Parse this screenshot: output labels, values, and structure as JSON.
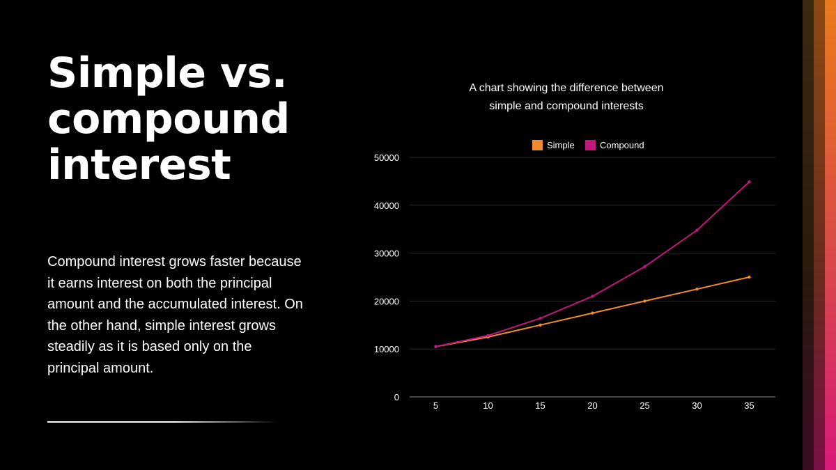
{
  "slide": {
    "title": "Simple vs. compound interest",
    "body": "Compound interest grows faster because it earns interest on both the principal amount and the accumulated interest. On the other hand, simple interest grows steadily as it is based only on the principal amount."
  },
  "colors": {
    "background": "#000000",
    "text": "#ffffff",
    "simple": "#f08a2c",
    "compound": "#c0187a",
    "gridline": "#2a2a2a"
  },
  "chart_data": {
    "type": "line",
    "title": "A chart showing the difference between simple and compound interests",
    "title_lines": [
      "A chart showing the difference between",
      "simple and compound interests"
    ],
    "x": [
      5,
      10,
      15,
      20,
      25,
      30,
      35
    ],
    "x_tick_labels": [
      "5",
      "10",
      "15",
      "20",
      "25",
      "30",
      "35"
    ],
    "y_tick_values": [
      0,
      10000,
      20000,
      30000,
      40000,
      50000
    ],
    "y_tick_labels": [
      "0",
      "10000",
      "20000",
      "30000",
      "40000",
      "50000"
    ],
    "ylim": [
      0,
      50000
    ],
    "xlabel": "",
    "ylabel": "",
    "grid": true,
    "legend_position": "top",
    "series": [
      {
        "name": "Simple",
        "color": "#f08a2c",
        "values": [
          10500,
          12500,
          15000,
          17500,
          20000,
          22500,
          25000
        ]
      },
      {
        "name": "Compound",
        "color": "#c0187a",
        "values": [
          10500,
          12800,
          16400,
          21000,
          27200,
          34800,
          44900
        ]
      }
    ]
  }
}
